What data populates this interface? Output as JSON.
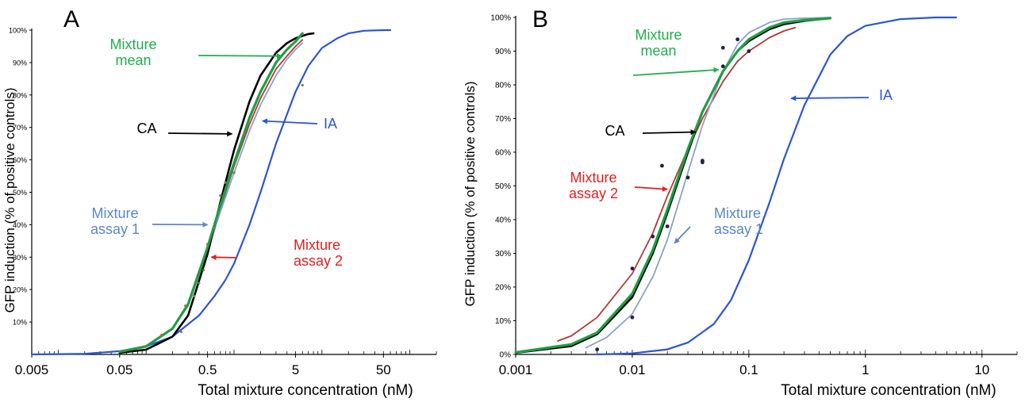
{
  "colors": {
    "axis": "#000000",
    "IA": "#2a55d6",
    "CA": "#000000",
    "mixture_mean": "#1f9e44",
    "mixture_assay_1": "#8aa1c9",
    "mixture_assay_2": "#b03a32",
    "label_mean": "#1fae4c",
    "label_assay_1": "#5b86c8",
    "label_assay_2": "#e02020",
    "label_IA": "#2a55d6",
    "points_A": "#8a7a3a",
    "points_B": "#222244"
  },
  "chart_data": [
    {
      "type": "line",
      "panel_label": "A",
      "xlabel": "Total mixture concentration (nM)",
      "ylabel": "GFP induction (% of positive controls)",
      "x_scale": "log",
      "xlim": [
        0.005,
        200
      ],
      "ylim": [
        0,
        100
      ],
      "x_tick_labels": [
        {
          "value": 0.005,
          "label": "0.005"
        },
        {
          "value": 0.05,
          "label": "0.05"
        },
        {
          "value": 0.5,
          "label": "0.5"
        },
        {
          "value": 5,
          "label": "5"
        },
        {
          "value": 50,
          "label": "50"
        }
      ],
      "y_tick_labels": [
        {
          "value": 10,
          "label": "10%"
        },
        {
          "value": 20,
          "label": "20%"
        },
        {
          "value": 30,
          "label": "30%"
        },
        {
          "value": 40,
          "label": "40%"
        },
        {
          "value": 50,
          "label": "50%"
        },
        {
          "value": 60,
          "label": "60%"
        },
        {
          "value": 70,
          "label": "70%"
        },
        {
          "value": 80,
          "label": "80%"
        },
        {
          "value": 90,
          "label": "90%"
        },
        {
          "value": 100,
          "label": "100%"
        }
      ],
      "series": [
        {
          "name": "IA",
          "color_key": "IA",
          "x": [
            0.005,
            0.02,
            0.05,
            0.1,
            0.2,
            0.4,
            0.6,
            0.8,
            1,
            1.5,
            2,
            3,
            4,
            5,
            7,
            10,
            15,
            20,
            30,
            50,
            60
          ],
          "y": [
            0,
            0.2,
            1,
            2.5,
            5.5,
            12,
            18,
            23,
            28,
            40,
            50,
            65,
            74,
            81,
            89,
            94.5,
            97.5,
            99,
            99.8,
            100,
            100
          ]
        },
        {
          "name": "CA",
          "color_key": "CA",
          "x": [
            0.05,
            0.1,
            0.2,
            0.3,
            0.5,
            0.7,
            1,
            1.5,
            2,
            3,
            4,
            5,
            7,
            8
          ],
          "y": [
            0.5,
            1.5,
            5.5,
            12,
            31,
            47,
            63,
            78,
            86,
            93,
            96,
            97.5,
            98.8,
            99
          ]
        },
        {
          "name": "Mixture mean",
          "color_key": "mixture_mean",
          "x": [
            0.05,
            0.1,
            0.2,
            0.3,
            0.5,
            0.7,
            1,
            1.5,
            2,
            3,
            4,
            5,
            6
          ],
          "y": [
            0.8,
            2.5,
            8,
            15.5,
            33,
            46,
            59,
            73,
            81,
            90,
            94,
            96.5,
            99
          ]
        },
        {
          "name": "Mixture assay 1",
          "color_key": "mixture_assay_1",
          "x": [
            0.05,
            0.1,
            0.2,
            0.3,
            0.5,
            0.7,
            1,
            1.5,
            2,
            3,
            4,
            5,
            6
          ],
          "y": [
            0.8,
            2.5,
            8,
            15,
            32,
            44,
            56,
            69,
            77,
            86,
            91,
            94,
            96
          ]
        },
        {
          "name": "Mixture assay 2",
          "color_key": "mixture_assay_2",
          "x": [
            0.05,
            0.1,
            0.2,
            0.3,
            0.5,
            0.7,
            1,
            1.5,
            2,
            3,
            4,
            5,
            6
          ],
          "y": [
            0.8,
            2.5,
            8,
            15,
            32,
            45,
            58,
            71,
            79,
            88,
            92,
            95,
            97
          ]
        }
      ],
      "points": {
        "x": [
          0.15,
          0.25,
          0.28,
          0.35,
          0.4,
          0.45,
          0.5,
          0.6,
          0.7,
          0.8,
          1.0,
          1.3,
          6.0
        ],
        "y": [
          6,
          7,
          15,
          18,
          22,
          26,
          34,
          39,
          49,
          53,
          56,
          68,
          83
        ]
      },
      "annotations": [
        {
          "text_lines": [
            "Mixture",
            "mean"
          ],
          "color_key": "label_mean",
          "arrow_to": {
            "x": 3.5,
            "y": 92
          }
        },
        {
          "text_lines": [
            "CA"
          ],
          "color_key": "CA",
          "arrow_to": {
            "x": 0.95,
            "y": 68
          }
        },
        {
          "text_lines": [
            "IA"
          ],
          "color_key": "label_IA",
          "arrow_to": {
            "x": 2.1,
            "y": 72
          }
        },
        {
          "text_lines": [
            "Mixture",
            "assay 1"
          ],
          "color_key": "label_assay_1",
          "arrow_to": {
            "x": 0.5,
            "y": 40
          }
        },
        {
          "text_lines": [
            "Mixture",
            "assay 2"
          ],
          "color_key": "label_assay_2",
          "arrow_to": {
            "x": 0.55,
            "y": 30
          }
        }
      ]
    },
    {
      "type": "line",
      "panel_label": "B",
      "xlabel": "Total mixture concentration (nM)",
      "ylabel": "GFP induction (% of positive controls)",
      "x_scale": "log",
      "xlim": [
        0.001,
        20
      ],
      "ylim": [
        0,
        100
      ],
      "x_tick_labels": [
        {
          "value": 0.001,
          "label": "0.001"
        },
        {
          "value": 0.01,
          "label": "0.01"
        },
        {
          "value": 0.1,
          "label": "0.1"
        },
        {
          "value": 1,
          "label": "1"
        },
        {
          "value": 10,
          "label": "10"
        }
      ],
      "y_tick_labels": [
        {
          "value": 0,
          "label": "0%"
        },
        {
          "value": 10,
          "label": "10%"
        },
        {
          "value": 20,
          "label": "20%"
        },
        {
          "value": 30,
          "label": "30%"
        },
        {
          "value": 40,
          "label": "40%"
        },
        {
          "value": 50,
          "label": "50%"
        },
        {
          "value": 60,
          "label": "60%"
        },
        {
          "value": 70,
          "label": "70%"
        },
        {
          "value": 80,
          "label": "80%"
        },
        {
          "value": 90,
          "label": "90%"
        },
        {
          "value": 100,
          "label": "100%"
        }
      ],
      "series": [
        {
          "name": "IA",
          "color_key": "IA",
          "x": [
            0.005,
            0.01,
            0.02,
            0.03,
            0.05,
            0.07,
            0.1,
            0.15,
            0.2,
            0.3,
            0.5,
            0.7,
            1,
            2,
            4,
            6
          ],
          "y": [
            0,
            0.3,
            1.5,
            3.5,
            9,
            16,
            28,
            45,
            58,
            74,
            89,
            94.5,
            97.5,
            99.5,
            100,
            100
          ]
        },
        {
          "name": "CA",
          "color_key": "CA",
          "x": [
            0.001,
            0.003,
            0.005,
            0.01,
            0.015,
            0.02,
            0.03,
            0.04,
            0.06,
            0.08,
            0.1,
            0.15,
            0.2,
            0.3,
            0.5
          ],
          "y": [
            0.5,
            2.5,
            6,
            17,
            30,
            42,
            60,
            72,
            84,
            90,
            93,
            96.5,
            98,
            99,
            99.8
          ]
        },
        {
          "name": "Mixture mean",
          "color_key": "mixture_mean",
          "x": [
            0.001,
            0.003,
            0.005,
            0.01,
            0.015,
            0.02,
            0.03,
            0.04,
            0.06,
            0.08,
            0.1,
            0.15,
            0.2,
            0.3,
            0.5
          ],
          "y": [
            0.6,
            3,
            6.5,
            18,
            31,
            43,
            61,
            72,
            84,
            90,
            93.5,
            97,
            98.5,
            99.2,
            99.8
          ]
        },
        {
          "name": "Mixture assay 1",
          "color_key": "mixture_assay_1",
          "x": [
            0.004,
            0.006,
            0.01,
            0.015,
            0.02,
            0.03,
            0.04,
            0.06,
            0.08,
            0.1,
            0.15,
            0.2,
            0.3,
            0.5
          ],
          "y": [
            2,
            5,
            12,
            23,
            34,
            54,
            68,
            84,
            92,
            95.5,
            98.5,
            99.5,
            99.8,
            100
          ]
        },
        {
          "name": "Mixture assay 2",
          "color_key": "mixture_assay_2",
          "x": [
            0.0023,
            0.003,
            0.005,
            0.01,
            0.015,
            0.02,
            0.03,
            0.04,
            0.06,
            0.08,
            0.1,
            0.15,
            0.2,
            0.25
          ],
          "y": [
            4,
            5.5,
            11,
            24,
            36,
            47,
            61,
            70,
            81,
            87,
            90,
            94,
            96,
            97
          ]
        }
      ],
      "points": {
        "x": [
          0.005,
          0.01,
          0.01,
          0.015,
          0.018,
          0.02,
          0.03,
          0.04,
          0.04,
          0.06,
          0.06,
          0.08,
          0.1
        ],
        "y": [
          1.5,
          11,
          25.5,
          35,
          56,
          38,
          52.5,
          57,
          57.5,
          85.5,
          91,
          93.5,
          90
        ]
      },
      "annotations": [
        {
          "text_lines": [
            "Mixture",
            "mean"
          ],
          "color_key": "label_mean",
          "arrow_to": {
            "x": 0.055,
            "y": 84.5
          }
        },
        {
          "text_lines": [
            "CA"
          ],
          "color_key": "CA",
          "arrow_to": {
            "x": 0.035,
            "y": 66
          }
        },
        {
          "text_lines": [
            "Mixture",
            "assay 2"
          ],
          "color_key": "label_assay_2",
          "arrow_to": {
            "x": 0.02,
            "y": 49
          }
        },
        {
          "text_lines": [
            "Mixture",
            "assay 1"
          ],
          "color_key": "label_assay_1",
          "arrow_to": {
            "x": 0.023,
            "y": 33
          }
        },
        {
          "text_lines": [
            "IA"
          ],
          "color_key": "label_IA",
          "arrow_to": {
            "x": 0.23,
            "y": 76
          }
        }
      ]
    }
  ]
}
